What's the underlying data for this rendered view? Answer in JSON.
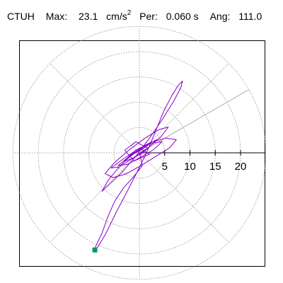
{
  "header": {
    "station": "CTUH",
    "max_label": "Max:",
    "max_value": "23.1",
    "max_unit": "cm/s",
    "max_unit_exp": "2",
    "per_label": "Per:",
    "per_value": "0.060 s",
    "ang_label": "Ang:",
    "ang_value": "111.0"
  },
  "chart_data": {
    "type": "polar-hodogram",
    "rings": [
      5,
      10,
      15,
      20,
      25
    ],
    "tick_labels": [
      "5",
      "10",
      "15",
      "20"
    ],
    "max_amplitude": 23.1,
    "angle_deg": 111.0,
    "period_s": 0.06,
    "grid": "dotted",
    "trace_color": "#8800cc",
    "marker_color": "#009966",
    "radial_line_angle_deg": 30,
    "trace_path": [
      [
        0,
        0
      ],
      [
        0.6,
        -2.5
      ],
      [
        -1.2,
        -4.8
      ],
      [
        -3.1,
        -6.9
      ],
      [
        -4.9,
        -9.6
      ],
      [
        -6.3,
        -12.8
      ],
      [
        -7.4,
        -15.9
      ],
      [
        -8.6,
        -18.4
      ],
      [
        -8.8,
        -19.2
      ],
      [
        -8.2,
        -18.6
      ],
      [
        -6.7,
        -16.1
      ],
      [
        -4.6,
        -11.8
      ],
      [
        -2.3,
        -7.4
      ],
      [
        -0.4,
        -3.7
      ],
      [
        1.5,
        0.2
      ],
      [
        3.2,
        4.3
      ],
      [
        4.8,
        8.2
      ],
      [
        6.4,
        11.3
      ],
      [
        7.6,
        13.2
      ],
      [
        8.5,
        14.2
      ],
      [
        8.3,
        13.1
      ],
      [
        6.9,
        10.4
      ],
      [
        4.6,
        6.7
      ],
      [
        2.0,
        2.9
      ],
      [
        -0.8,
        -0.8
      ],
      [
        -3.5,
        -3.9
      ],
      [
        -5.9,
        -6.2
      ],
      [
        -7.4,
        -7.6
      ],
      [
        -6.1,
        -5.3
      ],
      [
        -3.8,
        -2.6
      ],
      [
        -0.9,
        0.4
      ],
      [
        2.3,
        2.1
      ],
      [
        5.2,
        2.9
      ],
      [
        7.3,
        2.6
      ],
      [
        6.0,
        1.0
      ],
      [
        3.1,
        -0.8
      ],
      [
        0.2,
        -2.6
      ],
      [
        -2.7,
        -4.2
      ],
      [
        -5.2,
        -4.9
      ],
      [
        -6.8,
        -4.1
      ],
      [
        -4.9,
        -1.9
      ],
      [
        -2.0,
        0.6
      ],
      [
        1.1,
        2.9
      ],
      [
        3.9,
        4.6
      ],
      [
        5.7,
        5.1
      ],
      [
        4.3,
        3.2
      ],
      [
        1.6,
        0.9
      ],
      [
        -1.5,
        -1.2
      ],
      [
        -4.0,
        -2.8
      ],
      [
        -5.6,
        -3.0
      ],
      [
        -3.7,
        -1.6
      ],
      [
        -0.8,
        0.4
      ],
      [
        2.5,
        1.9
      ],
      [
        4.5,
        2.2
      ],
      [
        2.9,
        0.7
      ],
      [
        0.2,
        -0.9
      ],
      [
        -2.4,
        -2.3
      ],
      [
        -4.2,
        -2.5
      ],
      [
        -2.1,
        -0.8
      ],
      [
        0.6,
        1.1
      ],
      [
        3.4,
        2.6
      ],
      [
        1.8,
        1.0
      ],
      [
        -0.9,
        -0.9
      ],
      [
        -3.0,
        -1.7
      ],
      [
        -1.1,
        -0.2
      ],
      [
        1.6,
        1.4
      ],
      [
        -0.5,
        0.1
      ],
      [
        -2.2,
        -0.6
      ],
      [
        0.3,
        0.8
      ],
      [
        2.0,
        -0.3
      ],
      [
        -1.0,
        -1.6
      ],
      [
        -2.9,
        0.5
      ],
      [
        -0.7,
        2.2
      ],
      [
        1.7,
        0.9
      ],
      [
        0.0,
        -0.5
      ]
    ]
  }
}
